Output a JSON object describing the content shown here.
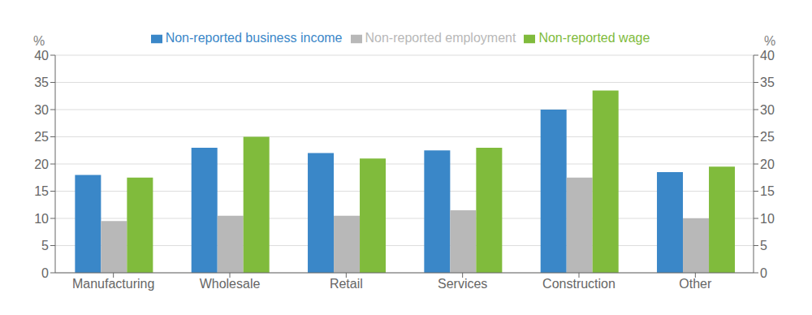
{
  "chart_data": {
    "type": "bar",
    "categories": [
      "Manufacturing",
      "Wholesale",
      "Retail",
      "Services",
      "Construction",
      "Other"
    ],
    "series": [
      {
        "name": "Non-reported business income",
        "color": "#3a87c8",
        "values": [
          18.0,
          23.0,
          22.0,
          22.5,
          30.0,
          18.5
        ]
      },
      {
        "name": "Non-reported employment",
        "color": "#b8b8b8",
        "values": [
          9.5,
          10.5,
          10.5,
          11.5,
          17.5,
          10.0
        ]
      },
      {
        "name": "Non-reported wage",
        "color": "#80bb3c",
        "values": [
          17.5,
          25.0,
          21.0,
          23.0,
          33.5,
          19.5
        ]
      }
    ],
    "ylabel": "%",
    "y2label": "%",
    "ylim": [
      0,
      40
    ],
    "yticks": [
      0,
      5,
      10,
      15,
      20,
      25,
      30,
      35,
      40
    ],
    "y2lim": [
      0,
      40
    ],
    "y2ticks": [
      0,
      5,
      10,
      15,
      20,
      25,
      30,
      35,
      40
    ],
    "grid": true,
    "legend": "top"
  }
}
